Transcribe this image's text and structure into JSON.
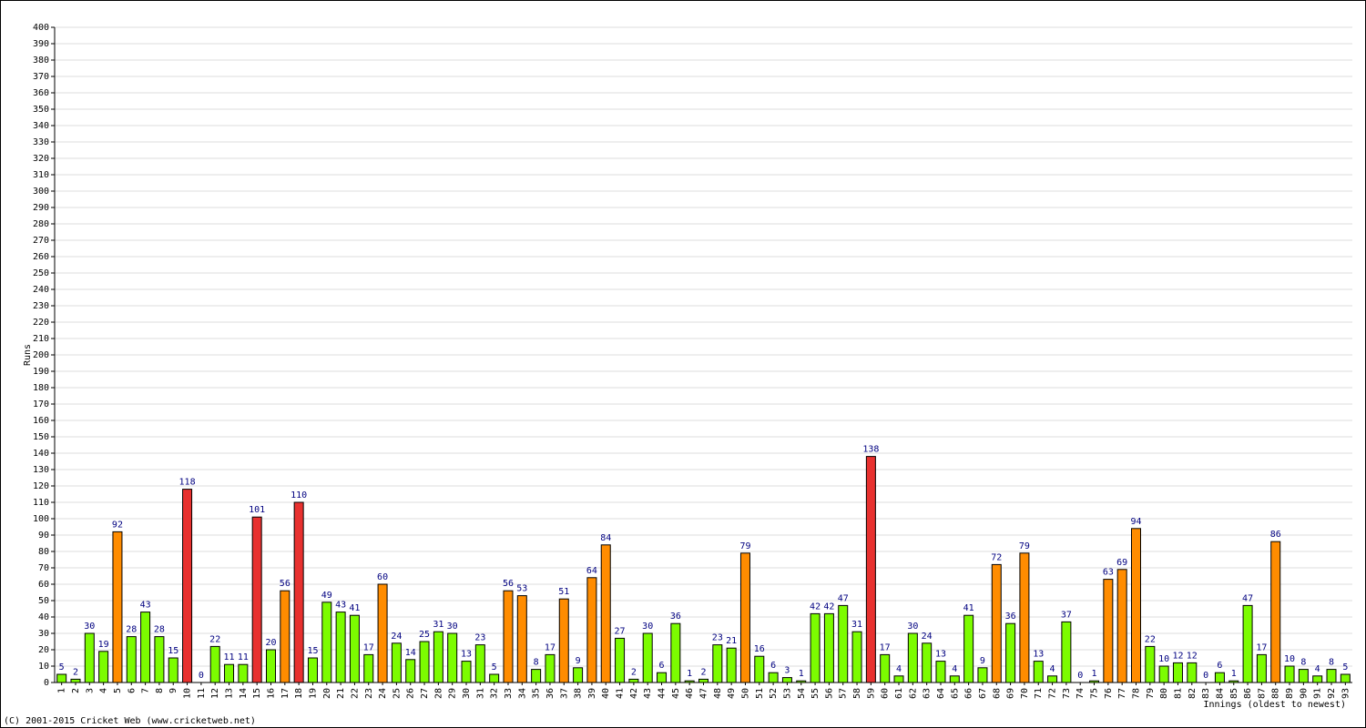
{
  "chart_data": {
    "type": "bar",
    "y_label": "Runs",
    "x_label": "Innings (oldest to newest)",
    "footer": "(C) 2001-2015 Cricket Web (www.cricketweb.net)",
    "categories": [
      "1",
      "2",
      "3",
      "4",
      "5",
      "6",
      "7",
      "8",
      "9",
      "10",
      "11",
      "12",
      "13",
      "14",
      "15",
      "16",
      "17",
      "18",
      "19",
      "20",
      "21",
      "22",
      "23",
      "24",
      "25",
      "26",
      "27",
      "28",
      "29",
      "30",
      "31",
      "32",
      "33",
      "34",
      "35",
      "36",
      "37",
      "38",
      "39",
      "40",
      "41",
      "42",
      "43",
      "44",
      "45",
      "46",
      "47",
      "48",
      "49",
      "50",
      "51",
      "52",
      "53",
      "54",
      "55",
      "56",
      "57",
      "58",
      "59",
      "60",
      "61",
      "62",
      "63",
      "64",
      "65",
      "66",
      "67",
      "68",
      "69",
      "70",
      "71",
      "72",
      "73",
      "74",
      "75",
      "76",
      "77",
      "78",
      "79",
      "80",
      "81",
      "82",
      "83",
      "84",
      "85",
      "86",
      "87",
      "88",
      "89",
      "90",
      "91",
      "92",
      "93"
    ],
    "values": [
      5,
      2,
      30,
      19,
      92,
      28,
      43,
      28,
      15,
      118,
      0,
      22,
      11,
      11,
      101,
      20,
      56,
      110,
      15,
      49,
      43,
      41,
      17,
      60,
      24,
      14,
      25,
      31,
      30,
      13,
      23,
      5,
      56,
      53,
      8,
      17,
      51,
      9,
      64,
      84,
      27,
      2,
      30,
      6,
      36,
      1,
      2,
      23,
      21,
      79,
      16,
      6,
      3,
      1,
      42,
      42,
      47,
      31,
      138,
      17,
      4,
      30,
      24,
      13,
      4,
      41,
      9,
      72,
      36,
      79,
      13,
      4,
      37,
      0,
      1,
      63,
      69,
      94,
      22,
      10,
      12,
      12,
      0,
      6,
      1,
      47,
      17,
      86,
      10,
      8,
      4,
      8,
      5
    ],
    "colors": [
      "#7cfc00",
      "#7cfc00",
      "#7cfc00",
      "#7cfc00",
      "#ff8c00",
      "#7cfc00",
      "#7cfc00",
      "#7cfc00",
      "#7cfc00",
      "#e8312f",
      "#7cfc00",
      "#7cfc00",
      "#7cfc00",
      "#7cfc00",
      "#e8312f",
      "#7cfc00",
      "#ff8c00",
      "#e8312f",
      "#7cfc00",
      "#7cfc00",
      "#7cfc00",
      "#7cfc00",
      "#7cfc00",
      "#ff8c00",
      "#7cfc00",
      "#7cfc00",
      "#7cfc00",
      "#7cfc00",
      "#7cfc00",
      "#7cfc00",
      "#7cfc00",
      "#7cfc00",
      "#ff8c00",
      "#ff8c00",
      "#7cfc00",
      "#7cfc00",
      "#ff8c00",
      "#7cfc00",
      "#ff8c00",
      "#ff8c00",
      "#7cfc00",
      "#7cfc00",
      "#7cfc00",
      "#7cfc00",
      "#7cfc00",
      "#7cfc00",
      "#7cfc00",
      "#7cfc00",
      "#7cfc00",
      "#ff8c00",
      "#7cfc00",
      "#7cfc00",
      "#7cfc00",
      "#7cfc00",
      "#7cfc00",
      "#7cfc00",
      "#7cfc00",
      "#7cfc00",
      "#e8312f",
      "#7cfc00",
      "#7cfc00",
      "#7cfc00",
      "#7cfc00",
      "#7cfc00",
      "#7cfc00",
      "#7cfc00",
      "#7cfc00",
      "#ff8c00",
      "#7cfc00",
      "#ff8c00",
      "#7cfc00",
      "#7cfc00",
      "#7cfc00",
      "#7cfc00",
      "#7cfc00",
      "#ff8c00",
      "#ff8c00",
      "#ff8c00",
      "#7cfc00",
      "#7cfc00",
      "#7cfc00",
      "#7cfc00",
      "#7cfc00",
      "#7cfc00",
      "#7cfc00",
      "#7cfc00",
      "#7cfc00",
      "#ff8c00",
      "#7cfc00",
      "#7cfc00",
      "#7cfc00",
      "#7cfc00",
      "#7cfc00"
    ],
    "ylim": [
      0,
      400
    ],
    "yticks": [
      0,
      10,
      20,
      30,
      40,
      50,
      60,
      70,
      80,
      90,
      100,
      110,
      120,
      130,
      140,
      150,
      160,
      170,
      180,
      190,
      200,
      210,
      220,
      230,
      240,
      250,
      260,
      270,
      280,
      290,
      300,
      310,
      320,
      330,
      340,
      350,
      360,
      370,
      380,
      390,
      400
    ],
    "grid": true
  }
}
